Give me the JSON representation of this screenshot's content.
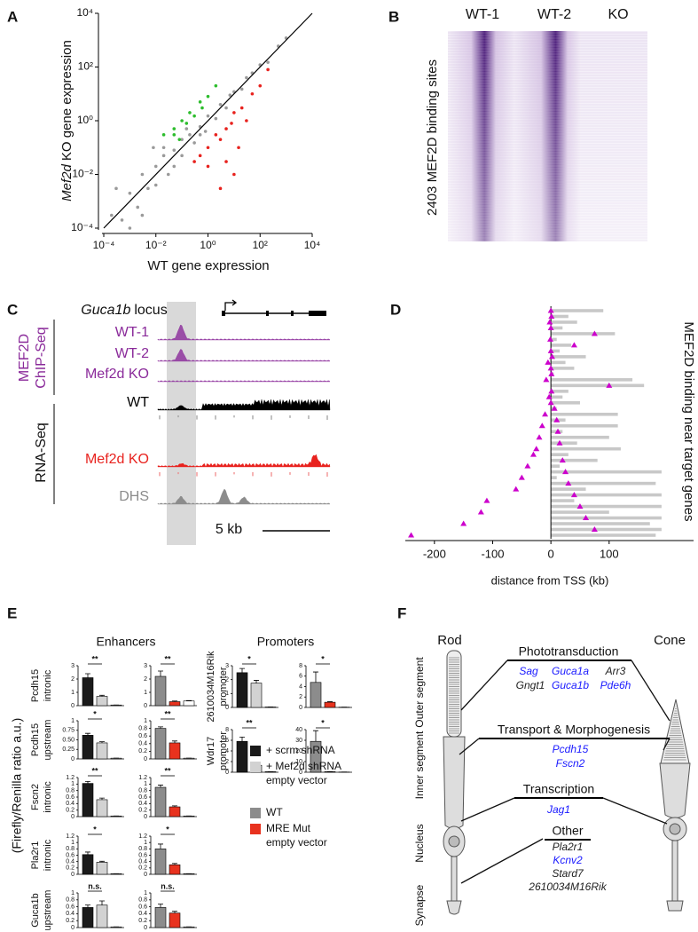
{
  "panel_labels": [
    "A",
    "B",
    "C",
    "D",
    "E",
    "F"
  ],
  "chart_data": [
    {
      "type": "scatter",
      "x_label": "WT gene expression",
      "y_label_italic": "Mef2d",
      "y_label": "KO gene expression",
      "log_scale": true,
      "xlim": [
        0.0001,
        10000
      ],
      "ylim": [
        0.0001,
        10000
      ],
      "xticks": [
        {
          "value": 0.0001,
          "label": "10⁻⁴"
        },
        {
          "value": 0.01,
          "label": "10⁻²"
        },
        {
          "value": 1,
          "label": "10⁰"
        },
        {
          "value": 100,
          "label": "10²"
        },
        {
          "value": 10000,
          "label": "10⁴"
        }
      ],
      "yticks": [
        {
          "value": 0.0001,
          "label": "10⁻⁴"
        },
        {
          "value": 0.01,
          "label": "10⁻²"
        },
        {
          "value": 1,
          "label": "10⁰"
        },
        {
          "value": 100,
          "label": "10²"
        },
        {
          "value": 10000,
          "label": "10⁴"
        }
      ],
      "series": [
        {
          "color": "#9a9a9a",
          "x": [
            0.0002,
            0.0005,
            0.001,
            0.002,
            0.003,
            0.005,
            0.01,
            0.01,
            0.02,
            0.03,
            0.05,
            0.05,
            0.1,
            0.1,
            0.2,
            0.3,
            0.5,
            0.8,
            1,
            2,
            3,
            5,
            10,
            20,
            30,
            50,
            100,
            200,
            500,
            1000,
            0.02,
            0.003,
            0.0003,
            0.15,
            0.5,
            7,
            0.001,
            0.008
          ],
          "y": [
            0.0003,
            0.0002,
            0.002,
            0.0006,
            0.01,
            0.003,
            0.02,
            0.004,
            0.05,
            0.01,
            0.08,
            0.02,
            0.2,
            0.05,
            0.3,
            0.15,
            0.6,
            0.4,
            1.5,
            1.2,
            4,
            3,
            12,
            15,
            40,
            60,
            120,
            150,
            600,
            1200,
            0.1,
            0.0003,
            0.003,
            0.5,
            0.3,
            9,
            0.0001,
            0.1
          ]
        },
        {
          "color": "#2dbd2d",
          "x": [
            0.05,
            0.1,
            0.2,
            0.3,
            0.05,
            0.5,
            1,
            0.15,
            0.08,
            0.02,
            2,
            0.6
          ],
          "y": [
            0.5,
            1,
            2,
            1.5,
            0.3,
            5,
            8,
            0.8,
            0.2,
            0.3,
            20,
            3
          ]
        },
        {
          "color": "#e8221e",
          "x": [
            1,
            2,
            5,
            10,
            3,
            20,
            50,
            100,
            0.5,
            1,
            10,
            3,
            5,
            200,
            30,
            8,
            0.3,
            15
          ],
          "y": [
            0.1,
            0.3,
            0.5,
            2,
            0.2,
            3,
            10,
            20,
            0.05,
            0.02,
            0.01,
            0.003,
            0.03,
            80,
            1,
            0.8,
            0.03,
            0.1
          ]
        }
      ]
    },
    {
      "type": "range",
      "x_label": "distance from TSS (kb)",
      "y_label": "MEF2D binding near target genes",
      "xlim": [
        -250,
        245
      ],
      "xticks": [
        -200,
        -100,
        0,
        100
      ],
      "series": [
        {
          "color": "#c8c8c8",
          "values": [
            90,
            30,
            45,
            20,
            110,
            10,
            35,
            15,
            60,
            25,
            40,
            5,
            140,
            160,
            30,
            20,
            50,
            10,
            115,
            25,
            115,
            20,
            100,
            45,
            120,
            30,
            80,
            15,
            190,
            10,
            180,
            60,
            190,
            40,
            190,
            100,
            190,
            170,
            190,
            180
          ]
        },
        {
          "color": "#cc00cc",
          "marker": "triangle",
          "values": [
            0,
            1,
            -2,
            0,
            75,
            -1,
            40,
            0,
            2,
            -5,
            0,
            1,
            -8,
            100,
            1,
            -3,
            0,
            6,
            -10,
            10,
            -15,
            12,
            -20,
            15,
            -25,
            -30,
            20,
            -40,
            25,
            -50,
            30,
            -60,
            40,
            -110,
            50,
            -120,
            60,
            -150,
            75,
            -240
          ]
        }
      ]
    }
  ],
  "panel_b": {
    "columns": [
      "WT-1",
      "WT-2",
      "KO"
    ],
    "y_label": "2403 MEF2D binding sites"
  },
  "panel_c": {
    "locus_italic": "Guca1b",
    "locus": "locus",
    "group1": [
      "MEF2D",
      "ChIP-Seq"
    ],
    "group2": "RNA-Seq",
    "scale": "5 kb",
    "tracks": [
      {
        "name": "WT-1",
        "color": "#8a2a9a"
      },
      {
        "name": "WT-2",
        "color": "#8a2a9a"
      },
      {
        "name": "Mef2d KO",
        "color": "#8a2a9a"
      },
      {
        "name": "WT",
        "color": "#000000"
      },
      {
        "name": "Mef2d KO",
        "color": "#e8221e"
      },
      {
        "name": "DHS",
        "color": "#8c8c8c"
      }
    ]
  },
  "panel_e": {
    "y_label": "(Firefly/Renilla ratio a.u.)",
    "legends": [
      [
        {
          "name": "+ scrm shRNA",
          "color": "#1a1a1a"
        },
        {
          "name": "+ Mef2d shRNA",
          "color": "#d2d2d2"
        },
        {
          "name": "empty vector",
          "color": "#ffffff"
        }
      ],
      [
        {
          "name": "WT",
          "color": "#8c8c8c"
        },
        {
          "name": "MRE Mut",
          "color": "#e8321e"
        },
        {
          "name": "empty vector",
          "color": "#ffffff"
        }
      ]
    ],
    "enhancers": {
      "title": "Enhancers",
      "rows": [
        {
          "label": [
            "Pcdh15",
            "intronic"
          ],
          "charts": [
            {
              "type": "bar",
              "ylim": [
                0,
                3
              ],
              "yticks": [
                0,
                1,
                2,
                3
              ],
              "values": [
                2.1,
                0.7,
                0.05
              ],
              "errors": [
                0.3,
                0.08,
                0
              ],
              "significance": "**"
            },
            {
              "type": "bar",
              "ylim": [
                0,
                3
              ],
              "yticks": [
                0,
                1,
                2,
                3
              ],
              "values": [
                2.2,
                0.3,
                0.35
              ],
              "errors": [
                0.4,
                0.05,
                0.03
              ],
              "significance": "**"
            }
          ]
        },
        {
          "label": [
            "Pcdh15",
            "upstream"
          ],
          "charts": [
            {
              "type": "bar",
              "ylim": [
                0,
                1
              ],
              "yticks": [
                0,
                {
                  "value": 0.25,
                  "label": "0.25"
                },
                {
                  "value": 0.5,
                  "label": "0.50"
                },
                {
                  "value": 0.75,
                  "label": "0.75"
                },
                1
              ],
              "values": [
                0.62,
                0.42,
                0.02
              ],
              "errors": [
                0.05,
                0.03,
                0
              ],
              "significance": "*"
            },
            {
              "type": "bar",
              "ylim": [
                0,
                1
              ],
              "yticks": [
                0,
                0.2,
                0.4,
                0.6,
                0.8,
                1
              ],
              "values": [
                0.8,
                0.42,
                0.02
              ],
              "errors": [
                0.04,
                0.05,
                0
              ],
              "significance": "**"
            }
          ]
        },
        {
          "label": [
            "Fscn2",
            "intronic"
          ],
          "charts": [
            {
              "type": "bar",
              "ylim": [
                0,
                1.2
              ],
              "yticks": [
                0,
                0.2,
                0.4,
                0.6,
                0.8,
                1,
                1.2
              ],
              "values": [
                1.02,
                0.52,
                0.02
              ],
              "errors": [
                0.06,
                0.05,
                0
              ],
              "significance": "**"
            },
            {
              "type": "bar",
              "ylim": [
                0,
                1.2
              ],
              "yticks": [
                0,
                0.2,
                0.4,
                0.6,
                0.8,
                1,
                1.2
              ],
              "values": [
                0.9,
                0.3,
                0.02
              ],
              "errors": [
                0.07,
                0.03,
                0
              ],
              "significance": "**"
            }
          ]
        },
        {
          "label": [
            "Pla2r1",
            "intronic"
          ],
          "charts": [
            {
              "type": "bar",
              "ylim": [
                0,
                1.2
              ],
              "yticks": [
                0,
                0.2,
                0.4,
                0.6,
                0.8,
                1,
                1.2
              ],
              "values": [
                0.62,
                0.38,
                0.02
              ],
              "errors": [
                0.08,
                0.03,
                0
              ],
              "significance": "*"
            },
            {
              "type": "bar",
              "ylim": [
                0,
                1.2
              ],
              "yticks": [
                0,
                0.2,
                0.4,
                0.6,
                0.8,
                1,
                1.2
              ],
              "values": [
                0.8,
                0.3,
                0.02
              ],
              "errors": [
                0.15,
                0.04,
                0
              ],
              "significance": "*"
            }
          ]
        },
        {
          "label": [
            "Guca1b",
            "upstream"
          ],
          "charts": [
            {
              "type": "bar",
              "ylim": [
                0,
                1
              ],
              "yticks": [
                0,
                0.2,
                0.4,
                0.6,
                0.8,
                1
              ],
              "values": [
                0.58,
                0.65,
                0.02
              ],
              "errors": [
                0.07,
                0.12,
                0
              ],
              "significance": "n.s."
            },
            {
              "type": "bar",
              "ylim": [
                0,
                1
              ],
              "yticks": [
                0,
                0.2,
                0.4,
                0.6,
                0.8,
                1
              ],
              "values": [
                0.58,
                0.42,
                0.02
              ],
              "errors": [
                0.1,
                0.05,
                0
              ],
              "significance": "n.s."
            }
          ]
        }
      ]
    },
    "promoters": {
      "title": "Promoters",
      "rows": [
        {
          "label": [
            "2610034M16Rik",
            "promoter"
          ],
          "charts": [
            {
              "type": "bar",
              "ylim": [
                0,
                3
              ],
              "yticks": [
                0,
                1,
                2,
                3
              ],
              "values": [
                2.5,
                1.75,
                0.03
              ],
              "errors": [
                0.3,
                0.2,
                0
              ],
              "significance": "*"
            },
            {
              "type": "bar",
              "ylim": [
                0,
                8
              ],
              "yticks": [
                0,
                2,
                4,
                6,
                8
              ],
              "values": [
                4.8,
                1,
                0.05
              ],
              "errors": [
                2,
                0.1,
                0
              ],
              "significance": "*"
            }
          ]
        },
        {
          "label": [
            "Wdr17",
            "promoter"
          ],
          "charts": [
            {
              "type": "bar",
              "ylim": [
                0,
                8
              ],
              "yticks": [
                0,
                2,
                4,
                6,
                8
              ],
              "values": [
                5.8,
                1.3,
                0.1
              ],
              "errors": [
                0.8,
                0.2,
                0
              ],
              "significance": "**"
            },
            {
              "type": "bar",
              "ylim": [
                0,
                40
              ],
              "yticks": [
                0,
                10,
                20,
                30,
                40
              ],
              "values": [
                29,
                0.5,
                0.2
              ],
              "errors": [
                10,
                0.1,
                0
              ],
              "significance": "*"
            }
          ]
        }
      ]
    }
  },
  "panel_f": {
    "cells": [
      "Rod",
      "Cone"
    ],
    "compartments": [
      "Outer segment",
      "Inner segment",
      "Nucleus",
      "Synapse"
    ],
    "groups": [
      {
        "title": "Phototransduction",
        "genes": [
          {
            "name": "Sag",
            "color": "#1a1aff"
          },
          {
            "name": "Guca1a",
            "color": "#1a1aff"
          },
          {
            "name": "Arr3",
            "color": "#222222"
          },
          {
            "name": "Gngt1",
            "color": "#222222"
          },
          {
            "name": "Guca1b",
            "color": "#1a1aff"
          },
          {
            "name": "Pde6h",
            "color": "#1a1aff"
          }
        ]
      },
      {
        "title": "Transport & Morphogenesis",
        "genes": [
          {
            "name": "Pcdh15",
            "color": "#1a1aff"
          },
          {
            "name": "Fscn2",
            "color": "#1a1aff"
          }
        ]
      },
      {
        "title": "Transcription",
        "genes": [
          {
            "name": "Jag1",
            "color": "#1a1aff"
          }
        ]
      },
      {
        "title": "Other",
        "genes": [
          {
            "name": "Pla2r1",
            "color": "#222222"
          },
          {
            "name": "Kcnv2",
            "color": "#1a1aff"
          },
          {
            "name": "Stard7",
            "color": "#222222"
          },
          {
            "name": "2610034M16Rik",
            "color": "#222222"
          }
        ]
      }
    ]
  }
}
